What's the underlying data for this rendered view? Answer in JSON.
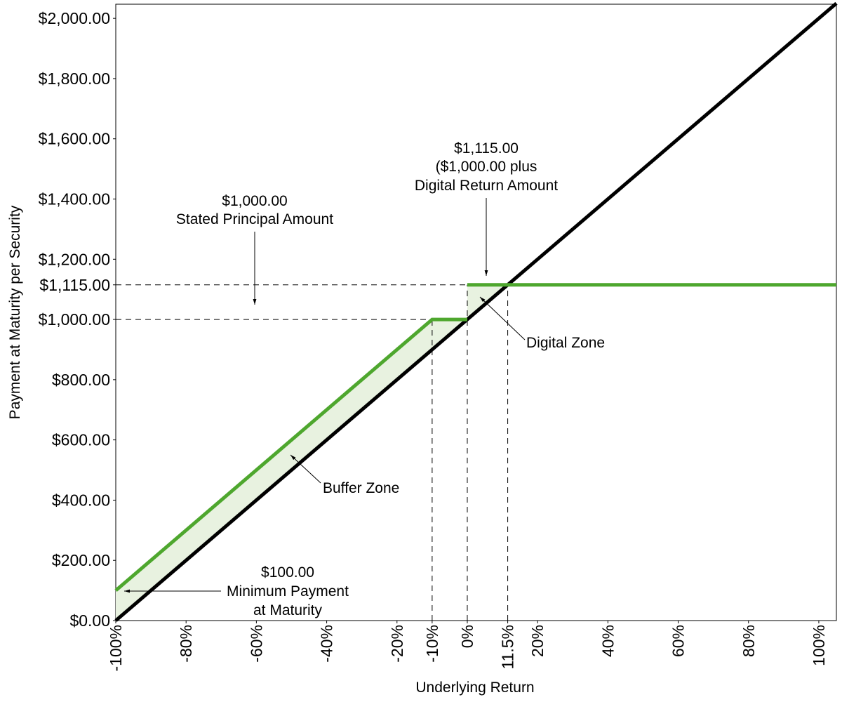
{
  "chart_data": {
    "type": "line",
    "x_label": "Underlying Return",
    "y_label": "Payment at Maturity per Security",
    "xlim": [
      -100,
      105
    ],
    "ylim": [
      0,
      2047
    ],
    "xticks": [
      {
        "value": -100,
        "label": "-100%"
      },
      {
        "value": -80,
        "label": "-80%"
      },
      {
        "value": -60,
        "label": "-60%"
      },
      {
        "value": -40,
        "label": "-40%"
      },
      {
        "value": -20,
        "label": "-20%"
      },
      {
        "value": -10,
        "label": "-10%"
      },
      {
        "value": 0,
        "label": "0%"
      },
      {
        "value": 11.5,
        "label": "11.5%"
      },
      {
        "value": 20,
        "label": "20%"
      },
      {
        "value": 40,
        "label": "40%"
      },
      {
        "value": 60,
        "label": "60%"
      },
      {
        "value": 80,
        "label": "80%"
      },
      {
        "value": 100,
        "label": "100%"
      }
    ],
    "yticks": [
      {
        "value": 0,
        "label": "$0.00"
      },
      {
        "value": 200,
        "label": "$200.00"
      },
      {
        "value": 400,
        "label": "$400.00"
      },
      {
        "value": 600,
        "label": "$600.00"
      },
      {
        "value": 800,
        "label": "$800.00"
      },
      {
        "value": 1000,
        "label": "$1,000.00"
      },
      {
        "value": 1115,
        "label": "$1,115.00"
      },
      {
        "value": 1200,
        "label": "$1,200.00"
      },
      {
        "value": 1400,
        "label": "$1,400.00"
      },
      {
        "value": 1600,
        "label": "$1,600.00"
      },
      {
        "value": 1800,
        "label": "$1,800.00"
      },
      {
        "value": 2000,
        "label": "$2,000.00"
      }
    ],
    "series": [
      {
        "color": "#000000",
        "x": [
          -100,
          105
        ],
        "values": [
          0,
          2050
        ]
      },
      {
        "color": "#4ea72e",
        "x": [
          -100,
          -10,
          0,
          0,
          0,
          105
        ],
        "values": [
          100,
          1000,
          1000,
          null,
          1115,
          1115
        ]
      }
    ],
    "annotations": {
      "digital_return": [
        "$1,115.00",
        "($1,000.00 plus",
        "Digital Return Amount"
      ],
      "principal": [
        "$1,000.00",
        "Stated Principal Amount"
      ],
      "digital_zone": "Digital Zone",
      "buffer_zone": "Buffer Zone",
      "minimum": [
        "$100.00",
        "Minimum Payment",
        "at Maturity"
      ]
    }
  }
}
